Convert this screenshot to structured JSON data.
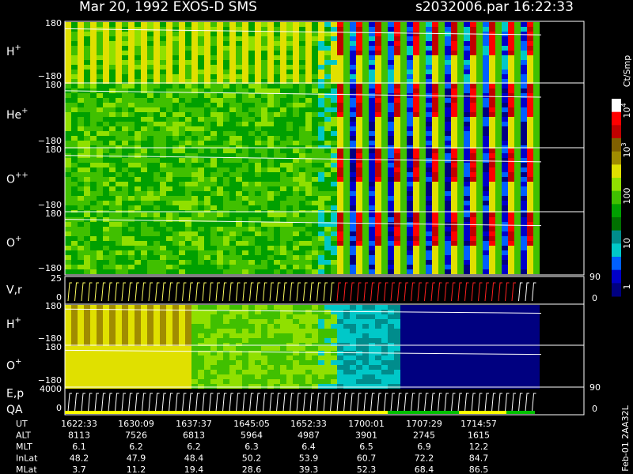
{
  "header": {
    "title": "Mar 20, 1992   EXOS-D SMS",
    "file": "s2032006.par  16:22:33"
  },
  "panels": [
    {
      "label": {
        "ion": "H",
        "charge": "+"
      },
      "top": "180",
      "bottom": "−180"
    },
    {
      "label": {
        "ion": "He",
        "charge": "+"
      },
      "top": "180",
      "bottom": "−180"
    },
    {
      "label": {
        "ion": "O",
        "charge": "++"
      },
      "top": "180",
      "bottom": "−180"
    },
    {
      "label": {
        "ion": "O",
        "charge": "+"
      },
      "top": "180",
      "bottom": "−180"
    },
    {
      "label": {
        "ion": "V,r",
        "charge": ""
      },
      "top": "25",
      "bottom": "0",
      "right_top": "90",
      "right_bottom": "0"
    },
    {
      "label": {
        "ion": "H",
        "charge": "+"
      },
      "top": "180",
      "bottom": "−180"
    },
    {
      "label": {
        "ion": "O",
        "charge": "+"
      },
      "top": "180",
      "bottom": "−180"
    },
    {
      "label": {
        "ion": "E,p",
        "charge": ""
      },
      "label2": "QA",
      "top": "4000",
      "bottom": "0",
      "right_top": "90",
      "right_bottom": "0"
    }
  ],
  "colorbar": {
    "unit": "Ct/Smp",
    "labels": [
      {
        "base": "10",
        "exp": "4"
      },
      {
        "base": "10",
        "exp": "3"
      },
      {
        "base": "100",
        "exp": ""
      },
      {
        "base": "10",
        "exp": ""
      },
      {
        "base": "1",
        "exp": ""
      }
    ]
  },
  "footer": {
    "rows": [
      [
        "UT",
        "1622:33",
        "1630:09",
        "1637:37",
        "1645:05",
        "1652:33",
        "1700:01",
        "1707:29",
        "1714:57"
      ],
      [
        "ALT",
        "8113",
        "7526",
        "6813",
        "5964",
        "4987",
        "3901",
        "2745",
        "1615"
      ],
      [
        "MLT",
        "6.1",
        "6.2",
        "6.2",
        "6.3",
        "6.4",
        "6.5",
        "6.9",
        "12.2"
      ],
      [
        "InLat",
        "48.2",
        "47.9",
        "48.4",
        "50.2",
        "53.9",
        "60.7",
        "72.2",
        "84.7"
      ],
      [
        "MLat",
        "3.7",
        "11.2",
        "19.4",
        "28.6",
        "39.3",
        "52.3",
        "68.4",
        "86.5"
      ]
    ]
  },
  "stamp": "Feb-01 2AA32L"
}
